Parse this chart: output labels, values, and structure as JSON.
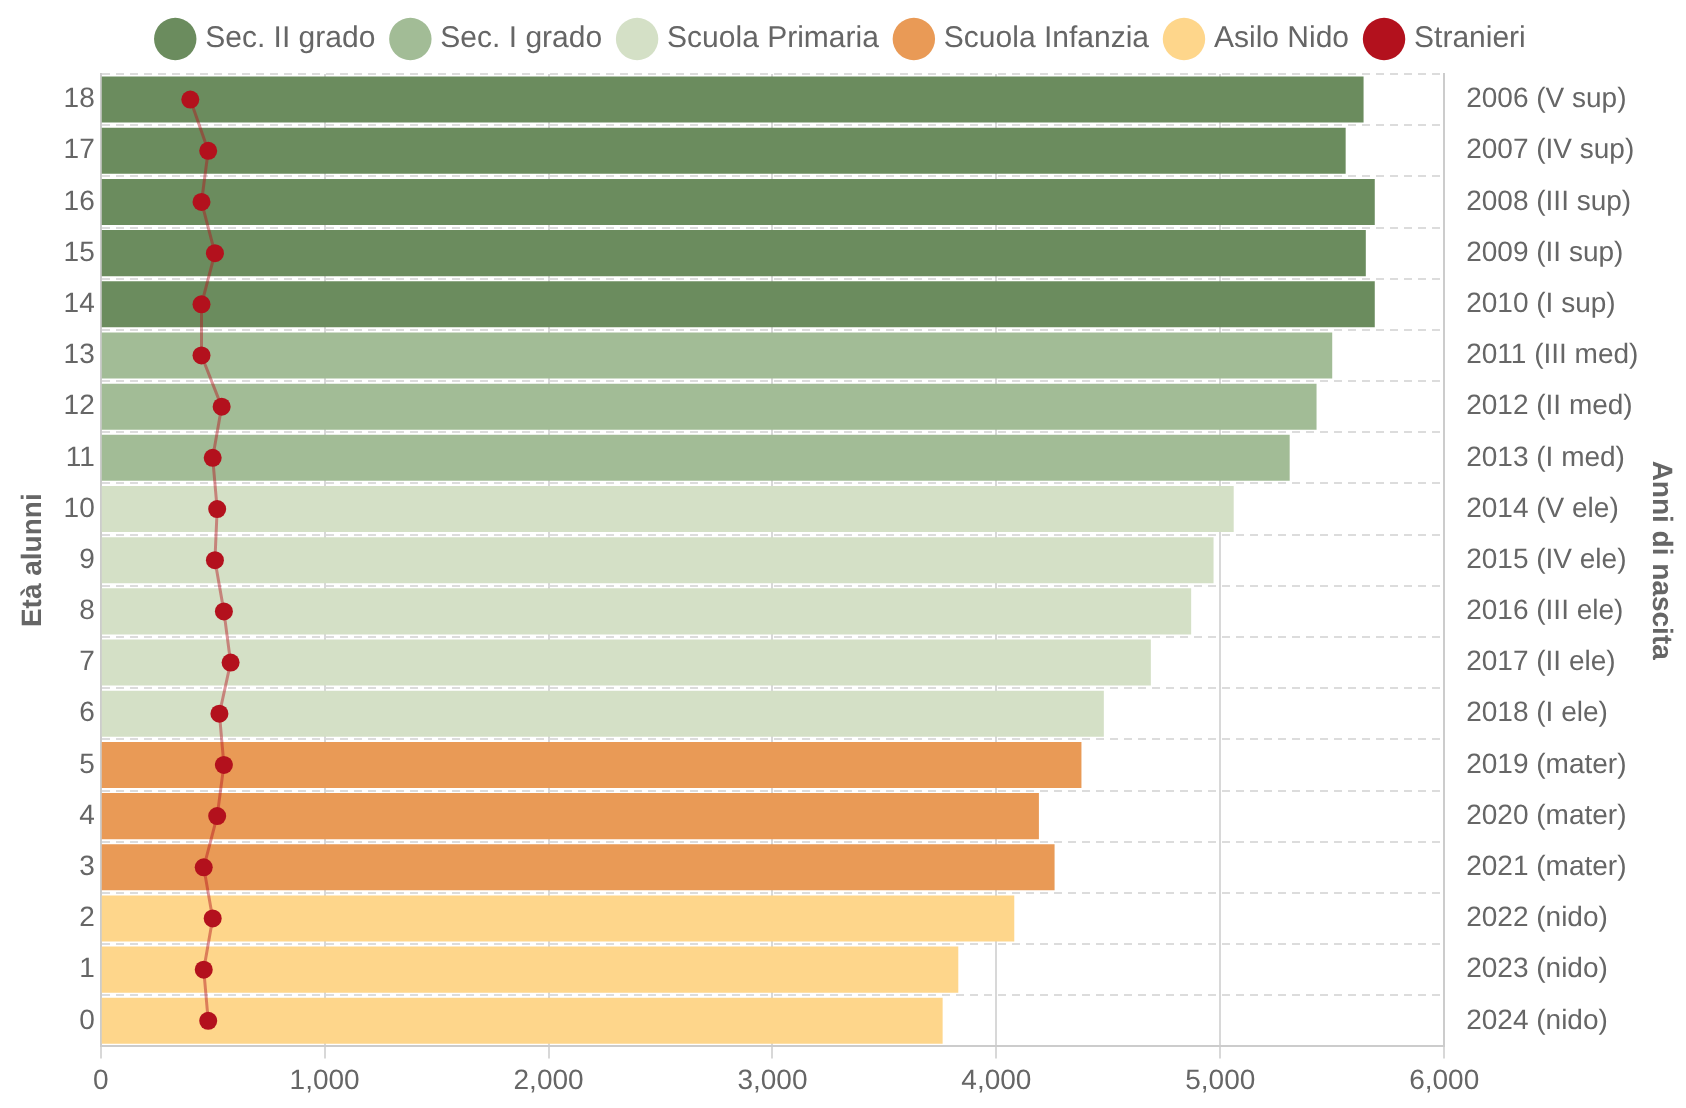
{
  "chart_data": {
    "type": "bar",
    "orientation": "horizontal",
    "stacked": true,
    "categories": [
      "18",
      "17",
      "16",
      "15",
      "14",
      "13",
      "12",
      "11",
      "10",
      "9",
      "8",
      "7",
      "6",
      "5",
      "4",
      "3",
      "2",
      "1",
      "0"
    ],
    "y2_categories": [
      "2006 (V sup)",
      "2007 (IV sup)",
      "2008 (III sup)",
      "2009 (II sup)",
      "2010 (I sup)",
      "2011 (III med)",
      "2012 (II med)",
      "2013 (I med)",
      "2014 (V ele)",
      "2015 (IV ele)",
      "2016 (III ele)",
      "2017 (II ele)",
      "2018 (I ele)",
      "2019 (mater)",
      "2020 (mater)",
      "2021 (mater)",
      "2022 (nido)",
      "2023 (nido)",
      "2024 (nido)"
    ],
    "series": [
      {
        "name": "Sec. II grado",
        "color": "#6b8c5e",
        "values": [
          5640,
          5560,
          5690,
          5650,
          5690,
          null,
          null,
          null,
          null,
          null,
          null,
          null,
          null,
          null,
          null,
          null,
          null,
          null,
          null
        ]
      },
      {
        "name": "Sec. I grado",
        "color": "#a2bc96",
        "values": [
          null,
          null,
          null,
          null,
          null,
          5500,
          5430,
          5310,
          null,
          null,
          null,
          null,
          null,
          null,
          null,
          null,
          null,
          null,
          null
        ]
      },
      {
        "name": "Scuola Primaria",
        "color": "#d4e0c6",
        "values": [
          null,
          null,
          null,
          null,
          null,
          null,
          null,
          null,
          5060,
          4970,
          4870,
          4690,
          4480,
          null,
          null,
          null,
          null,
          null,
          null
        ]
      },
      {
        "name": "Scuola Infanzia",
        "color": "#e99a56",
        "values": [
          null,
          null,
          null,
          null,
          null,
          null,
          null,
          null,
          null,
          null,
          null,
          null,
          null,
          4380,
          4190,
          4260,
          null,
          null,
          null
        ]
      },
      {
        "name": "Asilo Nido",
        "color": "#fed68b",
        "values": [
          null,
          null,
          null,
          null,
          null,
          null,
          null,
          null,
          null,
          null,
          null,
          null,
          null,
          null,
          null,
          null,
          4080,
          3830,
          3760
        ]
      },
      {
        "name": "Stranieri",
        "type": "line",
        "color": "#b3111d",
        "values": [
          400,
          480,
          450,
          510,
          450,
          450,
          540,
          500,
          520,
          510,
          550,
          580,
          530,
          550,
          520,
          460,
          500,
          460,
          480
        ]
      }
    ],
    "xlim": [
      0,
      6000
    ],
    "xticks": [
      0,
      {
        "value": 1000,
        "label": "1,000"
      },
      {
        "value": 2000,
        "label": "2,000"
      },
      {
        "value": 3000,
        "label": "3,000"
      },
      {
        "value": 4000,
        "label": "4,000"
      },
      {
        "value": 5000,
        "label": "5,000"
      },
      {
        "value": 6000,
        "label": "6,000"
      }
    ],
    "ylabel": "Età alunni",
    "annotations": [
      "Anni di nascita"
    ],
    "grid": true,
    "legend": "top",
    "marker": "circle"
  }
}
